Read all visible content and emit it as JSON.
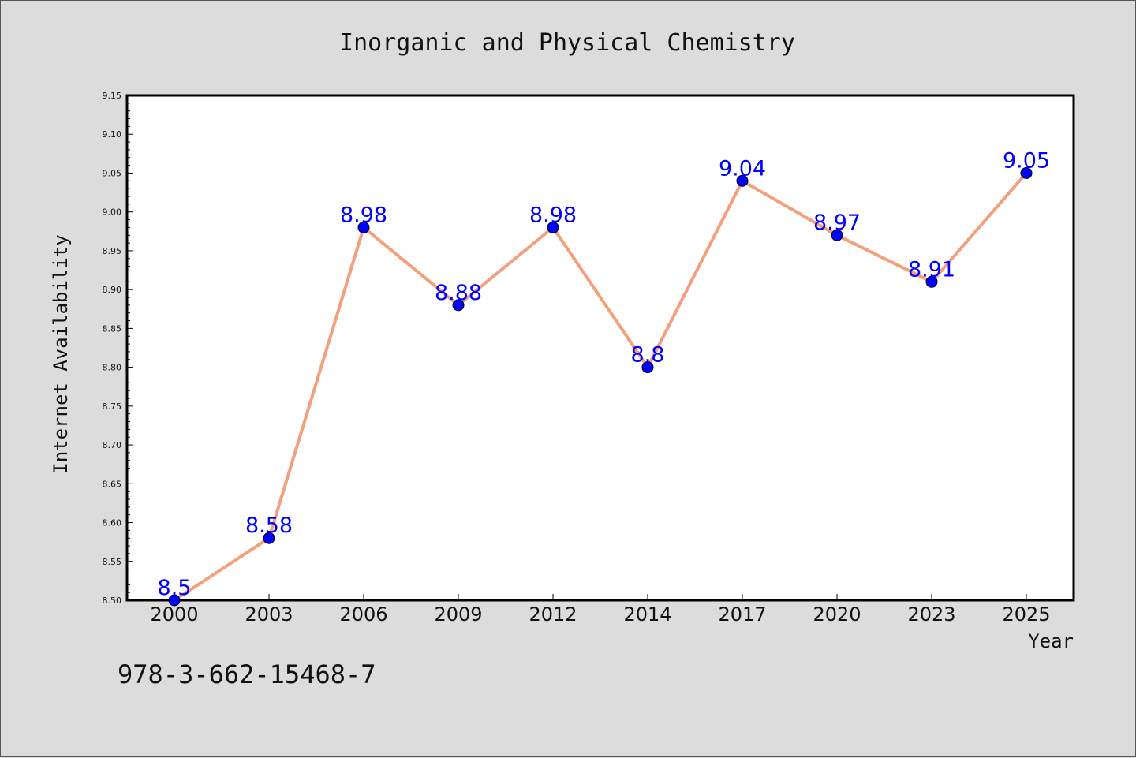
{
  "chart_data": {
    "type": "line",
    "title": "Inorganic and Physical Chemistry",
    "xlabel": "Year",
    "ylabel": "Internet Availability",
    "categories": [
      "2000",
      "2003",
      "2006",
      "2009",
      "2012",
      "2014",
      "2017",
      "2020",
      "2023",
      "2025"
    ],
    "series": [
      {
        "values": [
          8.5,
          8.58,
          8.98,
          8.88,
          8.98,
          8.8,
          9.04,
          8.97,
          8.91,
          9.05
        ],
        "data_labels": [
          "8.5",
          "8.58",
          "8.98",
          "8.88",
          "8.98",
          "8.8",
          "9.04",
          "8.97",
          "8.91",
          "9.05"
        ],
        "line_color": "#f4a07c",
        "marker_color": "#0000ff"
      }
    ],
    "ylim": [
      8.5,
      9.15
    ],
    "yticks": [
      "8.50",
      "8.55",
      "8.60",
      "8.65",
      "8.70",
      "8.75",
      "8.80",
      "8.85",
      "8.90",
      "8.95",
      "9.00",
      "9.05",
      "9.10",
      "9.15"
    ],
    "grid": false,
    "legend": false
  },
  "footnote": "978-3-662-15468-7",
  "colors": {
    "background": "#dcdcdc",
    "plot_background": "#ffffff",
    "line": "#f4a07c",
    "marker": "#0000ff",
    "data_label": "#0000ff"
  }
}
